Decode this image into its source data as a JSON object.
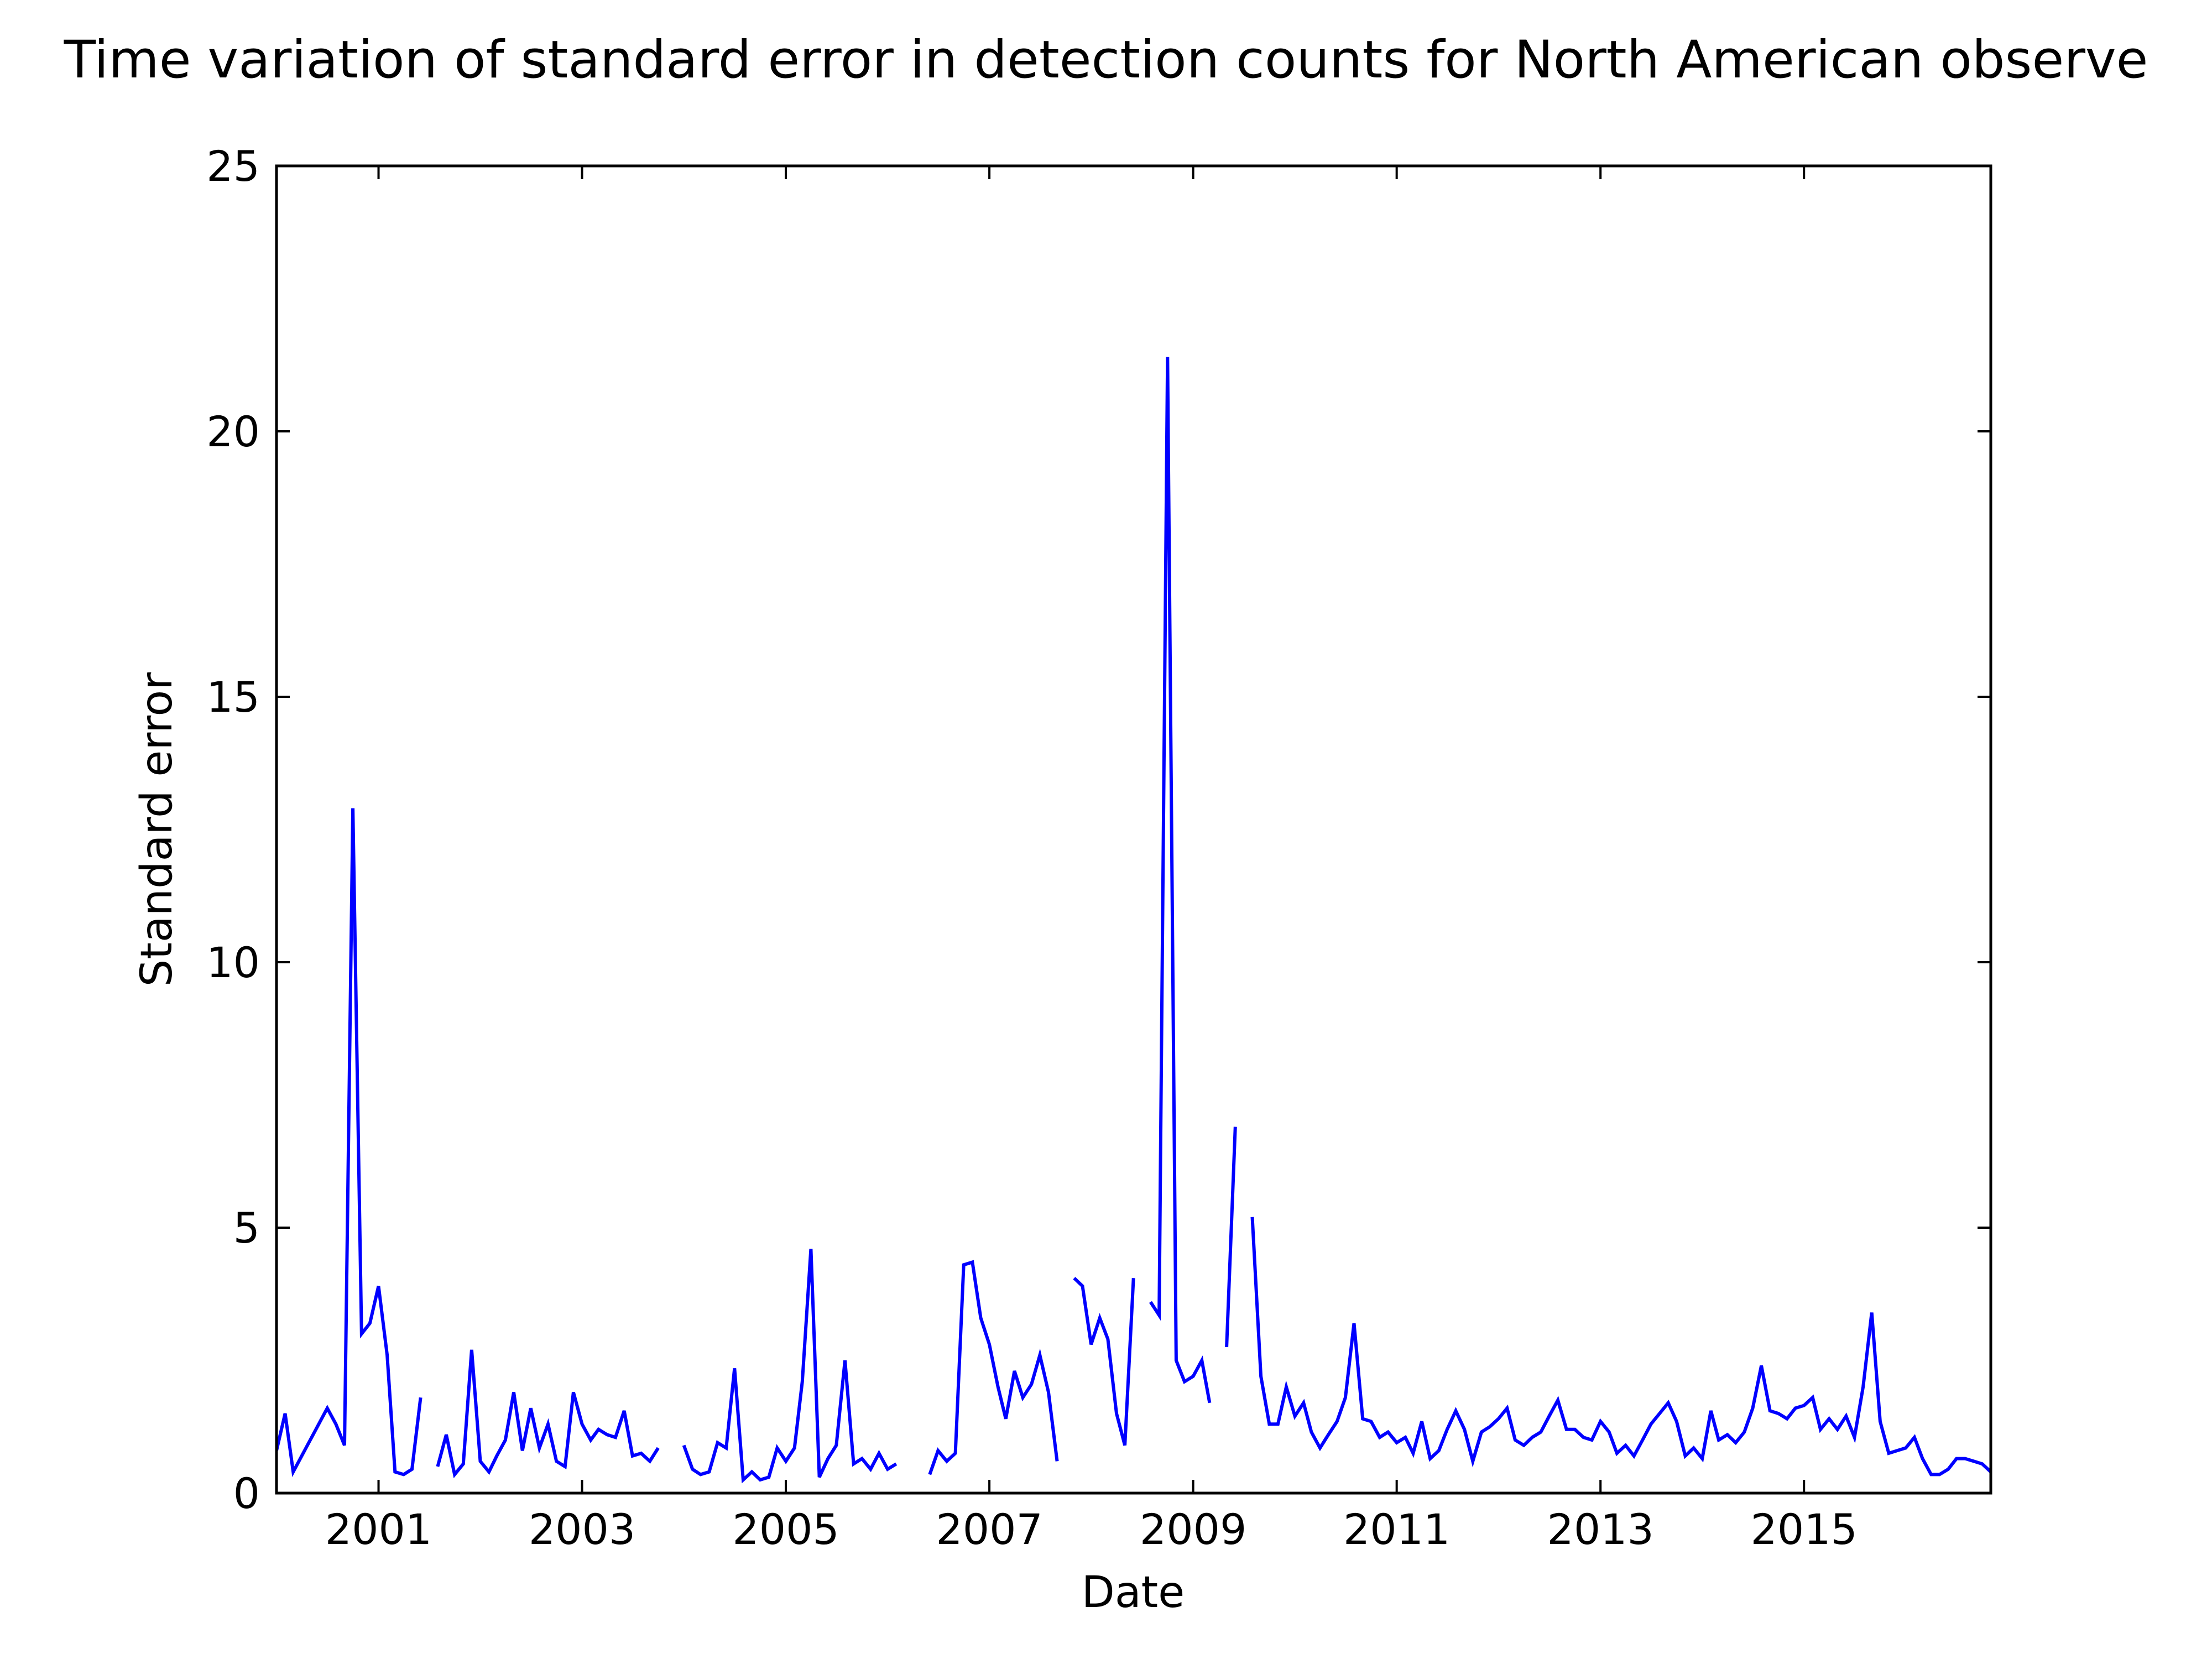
{
  "chart_data": {
    "type": "line",
    "title": "Time variation of standard error in detection counts for North American observe",
    "xlabel": "Date",
    "ylabel": "Standard error",
    "xlim": [
      "2000-01-01",
      "2016-11-01"
    ],
    "ylim": [
      0,
      25
    ],
    "xticks": [
      "2001",
      "2003",
      "2005",
      "2007",
      "2009",
      "2011",
      "2013",
      "2015"
    ],
    "yticks": [
      "0",
      "5",
      "10",
      "15",
      "20",
      "25"
    ],
    "grid": false,
    "line_color": "#0000ff",
    "series": [
      {
        "segments": [
          [
            [
              "2000-01",
              0.8
            ],
            [
              "2000-02",
              1.5
            ],
            [
              "2000-03",
              0.4
            ],
            [
              "2000-05",
              1.0
            ],
            [
              "2000-07",
              1.6
            ],
            [
              "2000-08",
              1.3
            ],
            [
              "2000-09",
              0.9
            ],
            [
              "2000-10",
              12.9
            ],
            [
              "2000-11",
              3.0
            ],
            [
              "2000-12",
              3.2
            ],
            [
              "2001-01",
              3.9
            ],
            [
              "2001-02",
              2.6
            ],
            [
              "2001-03",
              0.4
            ],
            [
              "2001-04",
              0.35
            ],
            [
              "2001-05",
              0.45
            ],
            [
              "2001-06",
              1.8
            ]
          ],
          [
            [
              "2001-08",
              0.5
            ],
            [
              "2001-09",
              1.1
            ],
            [
              "2001-10",
              0.35
            ],
            [
              "2001-11",
              0.55
            ],
            [
              "2001-12",
              2.7
            ],
            [
              "2002-01",
              0.6
            ],
            [
              "2002-02",
              0.4
            ],
            [
              "2002-03",
              0.7
            ],
            [
              "2002-04",
              1.0
            ],
            [
              "2002-05",
              1.9
            ],
            [
              "2002-06",
              0.8
            ],
            [
              "2002-07",
              1.6
            ],
            [
              "2002-08",
              0.85
            ],
            [
              "2002-09",
              1.3
            ],
            [
              "2002-10",
              0.6
            ],
            [
              "2002-11",
              0.5
            ],
            [
              "2002-12",
              1.9
            ],
            [
              "2003-01",
              1.3
            ],
            [
              "2003-02",
              1.0
            ],
            [
              "2003-03",
              1.2
            ],
            [
              "2003-04",
              1.1
            ],
            [
              "2003-05",
              1.05
            ],
            [
              "2003-06",
              1.55
            ],
            [
              "2003-07",
              0.7
            ],
            [
              "2003-08",
              0.75
            ],
            [
              "2003-09",
              0.6
            ],
            [
              "2003-10",
              0.85
            ]
          ],
          [
            [
              "2004-01",
              0.9
            ],
            [
              "2004-02",
              0.45
            ],
            [
              "2004-03",
              0.35
            ],
            [
              "2004-04",
              0.4
            ],
            [
              "2004-05",
              0.95
            ],
            [
              "2004-06",
              0.85
            ],
            [
              "2004-07",
              2.35
            ],
            [
              "2004-08",
              0.25
            ],
            [
              "2004-09",
              0.4
            ],
            [
              "2004-10",
              0.25
            ],
            [
              "2004-11",
              0.3
            ],
            [
              "2004-12",
              0.85
            ],
            [
              "2005-01",
              0.6
            ],
            [
              "2005-02",
              0.85
            ],
            [
              "2005-03",
              2.1
            ],
            [
              "2005-04",
              4.6
            ],
            [
              "2005-05",
              0.3
            ],
            [
              "2005-06",
              0.65
            ],
            [
              "2005-07",
              0.9
            ],
            [
              "2005-08",
              2.5
            ],
            [
              "2005-09",
              0.55
            ],
            [
              "2005-10",
              0.65
            ],
            [
              "2005-11",
              0.45
            ],
            [
              "2005-12",
              0.75
            ],
            [
              "2006-01",
              0.45
            ],
            [
              "2006-02",
              0.55
            ]
          ],
          [
            [
              "2006-06",
              0.35
            ],
            [
              "2006-07",
              0.8
            ],
            [
              "2006-08",
              0.6
            ],
            [
              "2006-09",
              0.75
            ],
            [
              "2006-10",
              4.3
            ],
            [
              "2006-11",
              4.35
            ],
            [
              "2006-12",
              3.3
            ],
            [
              "2007-01",
              2.8
            ],
            [
              "2007-02",
              2.0
            ],
            [
              "2007-03",
              1.4
            ],
            [
              "2007-04",
              2.3
            ],
            [
              "2007-05",
              1.8
            ],
            [
              "2007-06",
              2.05
            ],
            [
              "2007-07",
              2.6
            ],
            [
              "2007-08",
              1.9
            ],
            [
              "2007-09",
              0.6
            ]
          ],
          [
            [
              "2007-11",
              4.05
            ],
            [
              "2007-12",
              3.9
            ],
            [
              "2008-01",
              2.8
            ],
            [
              "2008-02",
              3.3
            ],
            [
              "2008-03",
              2.9
            ],
            [
              "2008-04",
              1.5
            ],
            [
              "2008-05",
              0.9
            ],
            [
              "2008-06",
              4.05
            ]
          ],
          [
            [
              "2008-08",
              3.6
            ],
            [
              "2008-09",
              3.35
            ],
            [
              "2008-10",
              21.4
            ],
            [
              "2008-11",
              2.5
            ],
            [
              "2008-12",
              2.1
            ],
            [
              "2009-01",
              2.2
            ],
            [
              "2009-02",
              2.5
            ],
            [
              "2009-03",
              1.7
            ]
          ],
          [
            [
              "2009-05",
              2.75
            ],
            [
              "2009-06",
              6.9
            ]
          ],
          [
            [
              "2009-08",
              5.2
            ],
            [
              "2009-09",
              2.2
            ],
            [
              "2009-10",
              1.3
            ],
            [
              "2009-11",
              1.3
            ],
            [
              "2009-12",
              2.0
            ],
            [
              "2010-01",
              1.45
            ],
            [
              "2010-02",
              1.7
            ],
            [
              "2010-03",
              1.15
            ],
            [
              "2010-04",
              0.85
            ],
            [
              "2010-05",
              1.1
            ],
            [
              "2010-06",
              1.35
            ],
            [
              "2010-07",
              1.8
            ],
            [
              "2010-08",
              3.2
            ],
            [
              "2010-09",
              1.4
            ],
            [
              "2010-10",
              1.35
            ],
            [
              "2010-11",
              1.05
            ],
            [
              "2010-12",
              1.15
            ],
            [
              "2011-01",
              0.95
            ],
            [
              "2011-02",
              1.05
            ],
            [
              "2011-03",
              0.75
            ],
            [
              "2011-04",
              1.35
            ],
            [
              "2011-05",
              0.65
            ],
            [
              "2011-06",
              0.8
            ],
            [
              "2011-07",
              1.2
            ],
            [
              "2011-08",
              1.55
            ],
            [
              "2011-09",
              1.2
            ],
            [
              "2011-10",
              0.6
            ],
            [
              "2011-11",
              1.15
            ],
            [
              "2011-12",
              1.25
            ],
            [
              "2012-01",
              1.4
            ],
            [
              "2012-02",
              1.6
            ],
            [
              "2012-03",
              1.0
            ],
            [
              "2012-04",
              0.9
            ],
            [
              "2012-05",
              1.05
            ],
            [
              "2012-06",
              1.15
            ],
            [
              "2012-07",
              1.45
            ],
            [
              "2012-08",
              1.75
            ],
            [
              "2012-09",
              1.2
            ],
            [
              "2012-10",
              1.2
            ],
            [
              "2012-11",
              1.05
            ],
            [
              "2012-12",
              1.0
            ],
            [
              "2013-01",
              1.35
            ],
            [
              "2013-02",
              1.15
            ],
            [
              "2013-03",
              0.75
            ],
            [
              "2013-04",
              0.9
            ],
            [
              "2013-05",
              0.7
            ],
            [
              "2013-06",
              1.0
            ],
            [
              "2013-07",
              1.3
            ],
            [
              "2013-08",
              1.5
            ],
            [
              "2013-09",
              1.7
            ],
            [
              "2013-10",
              1.35
            ],
            [
              "2013-11",
              0.7
            ],
            [
              "2013-12",
              0.85
            ],
            [
              "2014-01",
              0.65
            ],
            [
              "2014-02",
              1.55
            ],
            [
              "2014-03",
              1.0
            ],
            [
              "2014-04",
              1.1
            ],
            [
              "2014-05",
              0.95
            ],
            [
              "2014-06",
              1.15
            ],
            [
              "2014-07",
              1.6
            ],
            [
              "2014-08",
              2.4
            ],
            [
              "2014-09",
              1.55
            ],
            [
              "2014-10",
              1.5
            ],
            [
              "2014-11",
              1.4
            ],
            [
              "2014-12",
              1.6
            ],
            [
              "2015-01",
              1.65
            ],
            [
              "2015-02",
              1.8
            ],
            [
              "2015-03",
              1.2
            ],
            [
              "2015-04",
              1.4
            ],
            [
              "2015-05",
              1.2
            ],
            [
              "2015-06",
              1.45
            ],
            [
              "2015-07",
              1.05
            ],
            [
              "2015-08",
              2.0
            ],
            [
              "2015-09",
              3.4
            ],
            [
              "2015-10",
              1.35
            ],
            [
              "2015-11",
              0.75
            ],
            [
              "2015-12",
              0.8
            ],
            [
              "2016-01",
              0.85
            ],
            [
              "2016-02",
              1.05
            ],
            [
              "2016-03",
              0.65
            ],
            [
              "2016-04",
              0.35
            ],
            [
              "2016-05",
              0.35
            ],
            [
              "2016-06",
              0.45
            ],
            [
              "2016-07",
              0.65
            ],
            [
              "2016-08",
              0.65
            ],
            [
              "2016-09",
              0.6
            ],
            [
              "2016-10",
              0.55
            ],
            [
              "2016-11",
              0.4
            ],
            [
              "2016-12",
              0.5
            ],
            [
              "2017-01",
              0.5
            ]
          ]
        ]
      }
    ]
  }
}
